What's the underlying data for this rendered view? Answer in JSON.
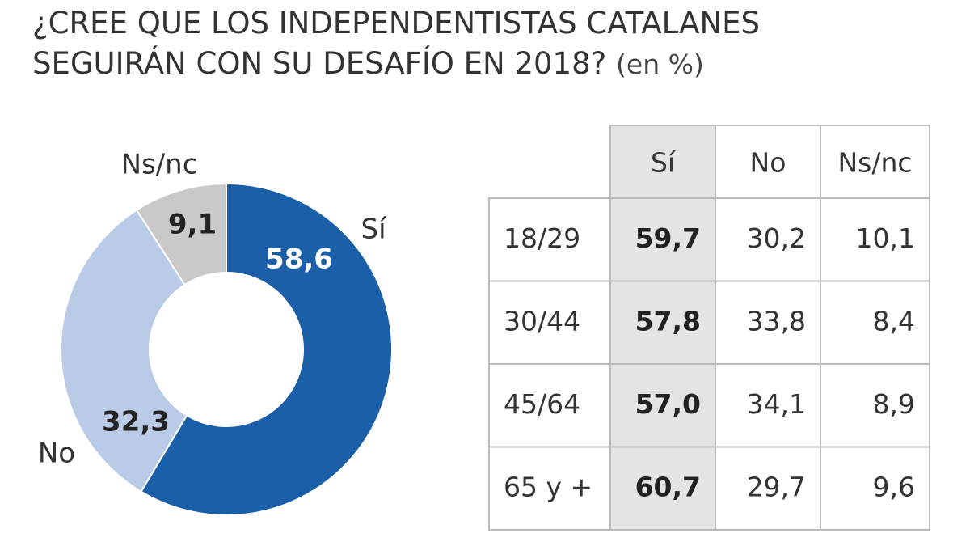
{
  "chart_data": {
    "type": "pie",
    "title": "¿CREE QUE LOS INDEPENDENTISTAS CATALANES SEGUIRÁN CON SU DESAFÍO EN 2018?",
    "subtitle": "(en %)",
    "categories": [
      "Sí",
      "No",
      "Ns/nc"
    ],
    "values": [
      58.6,
      32.3,
      9.1
    ],
    "value_labels": [
      "58,6",
      "32,3",
      "9,1"
    ],
    "colors": [
      "#1a5fa8",
      "#b9cbe6",
      "#c9c9c9"
    ],
    "label_colors": [
      "#ffffff",
      "#222222",
      "#222222"
    ],
    "donut": true
  },
  "table": {
    "header": [
      "Sí",
      "No",
      "Ns/nc"
    ],
    "rows": [
      [
        "18/29",
        "59,7",
        "30,2",
        "10,1"
      ],
      [
        "30/44",
        "57,8",
        "33,8",
        "8,4"
      ],
      [
        "45/64",
        "57,0",
        "34,1",
        "8,9"
      ],
      [
        "65 y +",
        "60,7",
        "29,7",
        "9,6"
      ]
    ]
  }
}
